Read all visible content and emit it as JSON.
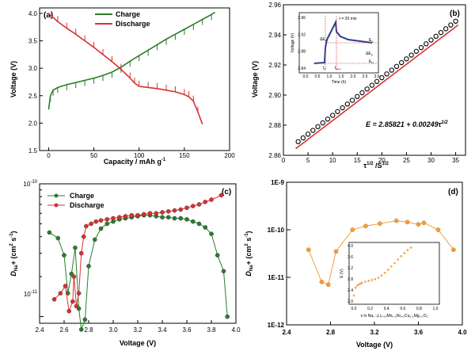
{
  "chart_data": [
    {
      "panel_label": "(a)",
      "type": "line",
      "xlabel": "Capacity / mAh g",
      "xlabel_sup": "-1",
      "ylabel": "Voltage (V)",
      "xlim": [
        -10,
        200
      ],
      "ylim": [
        1.5,
        4.1
      ],
      "xticks": [
        "0",
        "50",
        "100",
        "150",
        "200"
      ],
      "yticks": [
        "1.5",
        "2.0",
        "2.5",
        "3.0",
        "3.5",
        "4.0"
      ],
      "legend": "top-left",
      "series": [
        {
          "name": "Charge",
          "color": "#2a7d2a",
          "x": [
            0,
            2,
            5,
            10,
            20,
            30,
            40,
            50,
            60,
            70,
            80,
            90,
            100,
            110,
            120,
            130,
            140,
            150,
            160,
            170,
            180,
            184
          ],
          "y": [
            2.25,
            2.5,
            2.6,
            2.65,
            2.7,
            2.74,
            2.78,
            2.82,
            2.87,
            2.93,
            3.02,
            3.13,
            3.23,
            3.33,
            3.43,
            3.53,
            3.62,
            3.71,
            3.8,
            3.89,
            3.98,
            4.02
          ]
        },
        {
          "name": "Discharge",
          "color": "#d93030",
          "x": [
            0,
            10,
            20,
            30,
            40,
            50,
            60,
            70,
            80,
            90,
            95,
            100,
            110,
            120,
            130,
            140,
            150,
            155,
            160,
            165,
            170
          ],
          "y": [
            4.0,
            3.85,
            3.73,
            3.62,
            3.5,
            3.38,
            3.25,
            3.12,
            2.98,
            2.82,
            2.73,
            2.67,
            2.65,
            2.63,
            2.6,
            2.57,
            2.52,
            2.48,
            2.4,
            2.2,
            1.98
          ]
        }
      ]
    },
    {
      "panel_label": "(b)",
      "type": "scatter",
      "xlabel": "τ",
      "xlabel_sup": "1/2",
      "xlabel_unit": "S",
      "ylabel": "Voltage (V)",
      "xlim": [
        0,
        37
      ],
      "ylim": [
        2.86,
        2.96
      ],
      "xticks": [
        "0",
        "5",
        "10",
        "15",
        "20",
        "25",
        "30",
        "35"
      ],
      "yticks": [
        "2.86",
        "2.88",
        "2.90",
        "2.92",
        "2.94",
        "2.96"
      ],
      "equation": "E = 2.85821 + 0.00249τ",
      "equation_sup": "1/2",
      "series": [
        {
          "name": "data",
          "color": "#111111",
          "x": [
            3,
            4,
            5,
            6,
            7,
            8,
            9,
            10,
            11,
            12,
            13,
            14,
            15,
            16,
            17,
            18,
            19,
            20,
            21,
            22,
            23,
            24,
            25,
            26,
            27,
            28,
            29,
            30,
            31,
            32,
            33,
            34,
            35
          ],
          "y": [
            2.868,
            2.8705,
            2.873,
            2.8755,
            2.878,
            2.8805,
            2.883,
            2.8855,
            2.888,
            2.8905,
            2.893,
            2.8955,
            2.898,
            2.9005,
            2.903,
            2.9055,
            2.908,
            2.9105,
            2.913,
            2.9155,
            2.918,
            2.9205,
            2.923,
            2.9255,
            2.928,
            2.9305,
            2.933,
            2.9355,
            2.938,
            2.9405,
            2.943,
            2.9455,
            2.948
          ]
        },
        {
          "name": "fit",
          "color": "#d93030",
          "x": [
            2.5,
            35.5
          ],
          "y": [
            2.8644,
            2.9466
          ]
        }
      ],
      "inset": {
        "xlabel": "Time (h)",
        "ylabel": "Voltage (V)",
        "xticks": [
          "0.0",
          "0.5",
          "1.0",
          "1.5",
          "2.0",
          "2.5",
          "3.0"
        ],
        "yticks": [
          "2.84",
          "2.88",
          "2.92",
          "2.96"
        ],
        "annotation_tau": "τ = 20 min",
        "annotation_de1": "ΔE",
        "annotation_de1_sub": "τ",
        "annotation_es": "E",
        "annotation_es_sub": "s",
        "annotation_des": "ΔE",
        "annotation_des_sub": "s",
        "annotation_e0": "E",
        "annotation_e0_sub": "0",
        "annotation_t0": "t",
        "annotation_t0_sub": "0",
        "annotation_t0tau": "t",
        "annotation_t0tau_sub": "0+τ"
      }
    },
    {
      "panel_label": "(c)",
      "type": "line",
      "xlabel": "Voltage (V)",
      "ylabel": "D",
      "ylabel_sub": "Na",
      "ylabel_rest": "+ (cm",
      "ylabel_sup1": "2",
      "ylabel_s": " s",
      "ylabel_sup2": "-1",
      "ylabel_end": ")",
      "xlim": [
        2.4,
        4.0
      ],
      "ylim_log": [
        -11.05,
        -10
      ],
      "xticks": [
        "2.4",
        "2.6",
        "2.8",
        "3.0",
        "3.2",
        "3.4",
        "3.6",
        "3.8",
        "4.0"
      ],
      "ytick_top_base": "10",
      "ytick_top_exp": "-10",
      "ytick_bot_base": "10",
      "ytick_bot_exp": "-11",
      "legend": "top-left",
      "series": [
        {
          "name": "Charge",
          "color": "#2a7d2a",
          "x": [
            2.48,
            2.55,
            2.6,
            2.63,
            2.66,
            2.69,
            2.72,
            2.74,
            2.77,
            2.8,
            2.85,
            2.9,
            2.95,
            3.0,
            3.05,
            3.1,
            3.15,
            3.2,
            3.25,
            3.3,
            3.35,
            3.4,
            3.45,
            3.5,
            3.55,
            3.6,
            3.65,
            3.7,
            3.75,
            3.8,
            3.85,
            3.9,
            3.93
          ],
          "y": [
            4.3e-11,
            3.9e-11,
            2.9e-11,
            1.5e-11,
            2.1e-11,
            3.3e-11,
            1.15e-11,
            8e-12,
            9.5e-12,
            2.4e-11,
            3.8e-11,
            4.6e-11,
            5e-11,
            5.2e-11,
            5.4e-11,
            5.5e-11,
            5.6e-11,
            5.7e-11,
            5.8e-11,
            5.8e-11,
            5.7e-11,
            5.6e-11,
            5.6e-11,
            5.5e-11,
            5.5e-11,
            5.4e-11,
            5.2e-11,
            5e-11,
            4.7e-11,
            4.2e-11,
            2.9e-11,
            2.2e-11,
            1e-11
          ]
        },
        {
          "name": "Discharge",
          "color": "#d93030",
          "x": [
            2.52,
            2.57,
            2.61,
            2.64,
            2.67,
            2.68,
            2.7,
            2.72,
            2.74,
            2.76,
            2.78,
            2.82,
            2.86,
            2.9,
            2.95,
            3.0,
            3.05,
            3.1,
            3.15,
            3.2,
            3.25,
            3.3,
            3.35,
            3.4,
            3.45,
            3.5,
            3.55,
            3.6,
            3.65,
            3.7,
            3.75,
            3.8,
            3.88
          ],
          "y": [
            1.35e-11,
            1.5e-11,
            1.7e-11,
            1.1e-11,
            1.3e-11,
            2e-11,
            1.2e-11,
            1.5e-11,
            3e-11,
            4e-11,
            4.8e-11,
            5e-11,
            5.2e-11,
            5.3e-11,
            5.4e-11,
            5.5e-11,
            5.6e-11,
            5.7e-11,
            5.8e-11,
            5.8e-11,
            5.9e-11,
            6e-11,
            6e-11,
            6.1e-11,
            6.2e-11,
            6.3e-11,
            6.4e-11,
            6.6e-11,
            6.8e-11,
            7e-11,
            7.3e-11,
            7.6e-11,
            8.2e-11
          ]
        }
      ]
    },
    {
      "panel_label": "(d)",
      "type": "line",
      "xlabel": "Voltage (V)",
      "ylabel": "D",
      "ylabel_sub": "Na",
      "ylabel_rest": "+ (cm",
      "ylabel_sup1": "2",
      "ylabel_s": " s",
      "ylabel_sup2": "-1",
      "ylabel_end": ")",
      "xlim": [
        2.4,
        4.0
      ],
      "ylim_log": [
        -12,
        -9
      ],
      "xticks": [
        "2.4",
        "2.8",
        "3.2",
        "3.6",
        "4.0"
      ],
      "yticks": [
        "1E-12",
        "1E-11",
        "1E-10",
        "1E-9"
      ],
      "series": [
        {
          "name": "data",
          "color": "#f0a040",
          "x": [
            2.6,
            2.72,
            2.78,
            2.85,
            3.0,
            3.12,
            3.25,
            3.4,
            3.5,
            3.6,
            3.65,
            3.78,
            3.92
          ],
          "y": [
            3.8e-11,
            8e-12,
            7e-12,
            3.5e-11,
            1e-10,
            1.2e-10,
            1.35e-10,
            1.55e-10,
            1.45e-10,
            1.3e-10,
            1.4e-10,
            1e-10,
            3.8e-11
          ]
        }
      ],
      "inset": {
        "xlabel_pre": "x in Na",
        "xlabel_formula": "x in Na₁₋ₓLi₀.₀₆Mn₀.₅Ni₀.₂Cu₀.₁Mg₀.₁O₂",
        "ylabel": "E (V)",
        "xticks": [
          "0.0",
          "0.2",
          "0.4",
          "0.6",
          "0.8",
          "1.0"
        ],
        "yticks": [
          "2.0",
          "2.4",
          "2.8",
          "3.2",
          "3.6",
          "4.0"
        ],
        "x": [
          0.0,
          0.02,
          0.04,
          0.06,
          0.08,
          0.1,
          0.14,
          0.18,
          0.22,
          0.26,
          0.3,
          0.34,
          0.38,
          0.42,
          0.46,
          0.5,
          0.54,
          0.58,
          0.62,
          0.66,
          0.7
        ],
        "y": [
          2.2,
          2.48,
          2.56,
          2.6,
          2.63,
          2.66,
          2.7,
          2.73,
          2.76,
          2.79,
          2.84,
          2.92,
          3.02,
          3.13,
          3.25,
          3.37,
          3.5,
          3.62,
          3.73,
          3.84,
          3.93
        ]
      }
    }
  ]
}
